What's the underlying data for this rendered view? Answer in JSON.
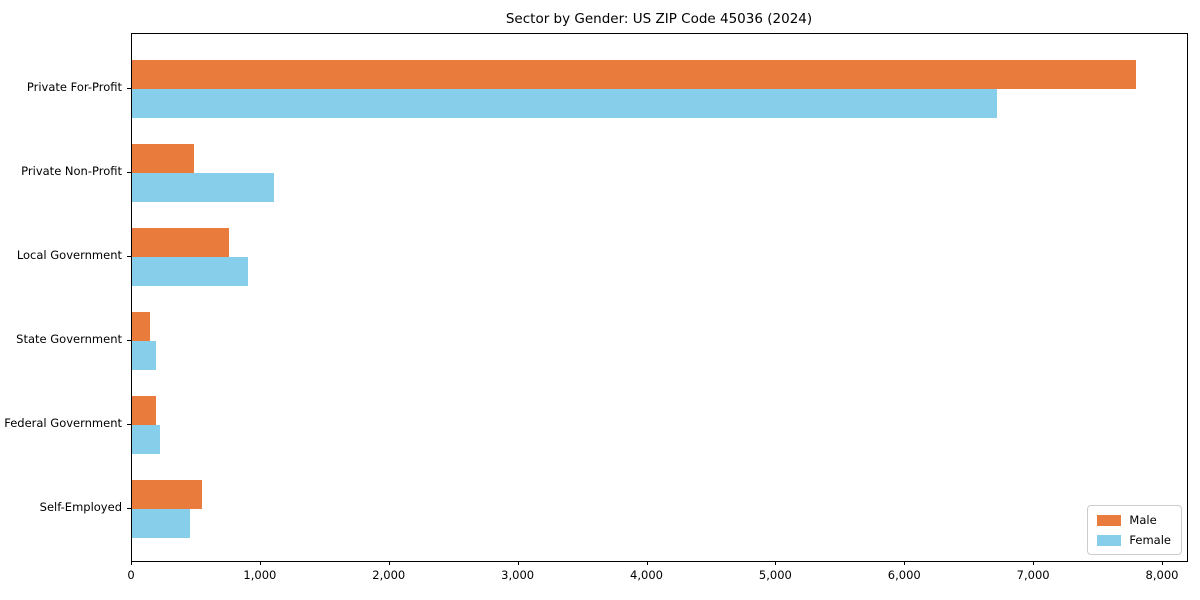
{
  "chart_data": {
    "type": "bar",
    "orientation": "horizontal",
    "title": "Sector by Gender: US ZIP Code 45036 (2024)",
    "categories": [
      "Private For-Profit",
      "Private Non-Profit",
      "Local Government",
      "State Government",
      "Federal Government",
      "Self-Employed"
    ],
    "series": [
      {
        "name": "Male",
        "color": "#e97b3c",
        "values": [
          7790,
          480,
          750,
          140,
          190,
          540
        ]
      },
      {
        "name": "Female",
        "color": "#87ceeb",
        "values": [
          6710,
          1100,
          900,
          190,
          220,
          450
        ]
      }
    ],
    "xlabel": "",
    "ylabel": "",
    "xlim": [
      0,
      8186
    ],
    "xticks": [
      0,
      1000,
      2000,
      3000,
      4000,
      5000,
      6000,
      7000,
      8000
    ],
    "xtick_labels": [
      "0",
      "1,000",
      "2,000",
      "3,000",
      "4,000",
      "5,000",
      "6,000",
      "7,000",
      "8,000"
    ],
    "grid": false,
    "legend_position": "lower right",
    "spine_color": "#000000"
  }
}
